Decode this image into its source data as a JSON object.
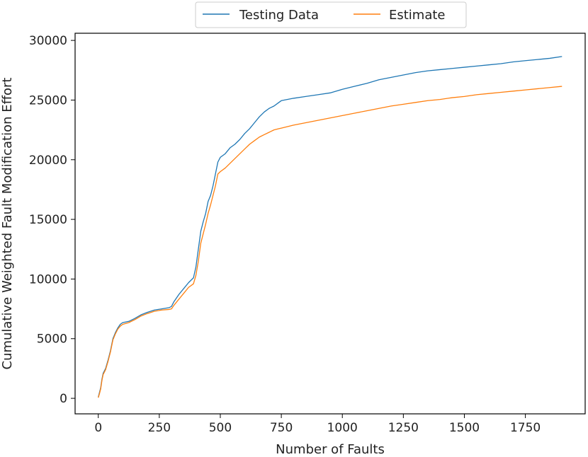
{
  "chart_data": {
    "type": "line",
    "title": "",
    "xlabel": "Number of Faults",
    "ylabel": "Cumulative Weighted Fault Modification Effort",
    "xlim": [
      -95,
      1995
    ],
    "ylim": [
      -1300,
      30600
    ],
    "xticks": [
      0,
      250,
      500,
      750,
      1000,
      1250,
      1500,
      1750
    ],
    "yticks": [
      0,
      5000,
      10000,
      15000,
      20000,
      25000,
      30000
    ],
    "grid": false,
    "legend": "top-center",
    "series": [
      {
        "name": "Testing Data",
        "color": "#1f77b4",
        "x": [
          0,
          5,
          10,
          15,
          20,
          25,
          30,
          40,
          50,
          60,
          70,
          80,
          90,
          100,
          125,
          150,
          175,
          200,
          230,
          260,
          290,
          300,
          310,
          330,
          350,
          370,
          390,
          400,
          410,
          420,
          430,
          440,
          450,
          460,
          470,
          480,
          490,
          500,
          520,
          540,
          560,
          580,
          600,
          620,
          640,
          660,
          680,
          700,
          720,
          740,
          750,
          800,
          850,
          900,
          950,
          1000,
          1050,
          1100,
          1150,
          1200,
          1250,
          1300,
          1350,
          1400,
          1450,
          1500,
          1550,
          1600,
          1650,
          1700,
          1750,
          1800,
          1850,
          1900
        ],
        "y": [
          100,
          500,
          900,
          1600,
          2100,
          2300,
          2500,
          3200,
          4000,
          5000,
          5500,
          5900,
          6200,
          6350,
          6450,
          6700,
          7000,
          7200,
          7400,
          7500,
          7600,
          7700,
          8100,
          8700,
          9200,
          9700,
          10100,
          11000,
          12500,
          14000,
          14800,
          15500,
          16500,
          17000,
          17800,
          18800,
          19800,
          20200,
          20500,
          21000,
          21300,
          21700,
          22200,
          22600,
          23100,
          23600,
          24000,
          24300,
          24500,
          24800,
          24950,
          25150,
          25300,
          25450,
          25600,
          25900,
          26150,
          26400,
          26700,
          26900,
          27100,
          27300,
          27450,
          27550,
          27650,
          27750,
          27850,
          27950,
          28050,
          28200,
          28300,
          28400,
          28500,
          28650
        ]
      },
      {
        "name": "Estimate",
        "color": "#ff7f0e",
        "x": [
          0,
          5,
          10,
          15,
          20,
          25,
          30,
          40,
          50,
          60,
          70,
          80,
          90,
          100,
          125,
          150,
          175,
          200,
          230,
          260,
          290,
          300,
          310,
          330,
          350,
          370,
          390,
          400,
          410,
          420,
          430,
          440,
          450,
          460,
          470,
          480,
          490,
          500,
          520,
          540,
          560,
          580,
          600,
          620,
          640,
          660,
          680,
          700,
          720,
          740,
          750,
          800,
          850,
          900,
          950,
          1000,
          1050,
          1100,
          1150,
          1200,
          1250,
          1300,
          1350,
          1400,
          1450,
          1500,
          1550,
          1600,
          1650,
          1700,
          1750,
          1800,
          1850,
          1900
        ],
        "y": [
          50,
          400,
          800,
          1500,
          2000,
          2200,
          2400,
          3100,
          3900,
          4900,
          5400,
          5800,
          6050,
          6200,
          6350,
          6600,
          6900,
          7100,
          7300,
          7400,
          7450,
          7500,
          7800,
          8300,
          8800,
          9300,
          9600,
          10300,
          11500,
          13000,
          13800,
          14600,
          15500,
          16200,
          17000,
          17800,
          18800,
          19000,
          19300,
          19700,
          20100,
          20500,
          20900,
          21300,
          21600,
          21900,
          22100,
          22300,
          22500,
          22600,
          22650,
          22900,
          23100,
          23300,
          23500,
          23700,
          23900,
          24100,
          24300,
          24500,
          24650,
          24800,
          24950,
          25050,
          25200,
          25300,
          25450,
          25550,
          25650,
          25750,
          25850,
          25950,
          26050,
          26150
        ]
      }
    ]
  }
}
